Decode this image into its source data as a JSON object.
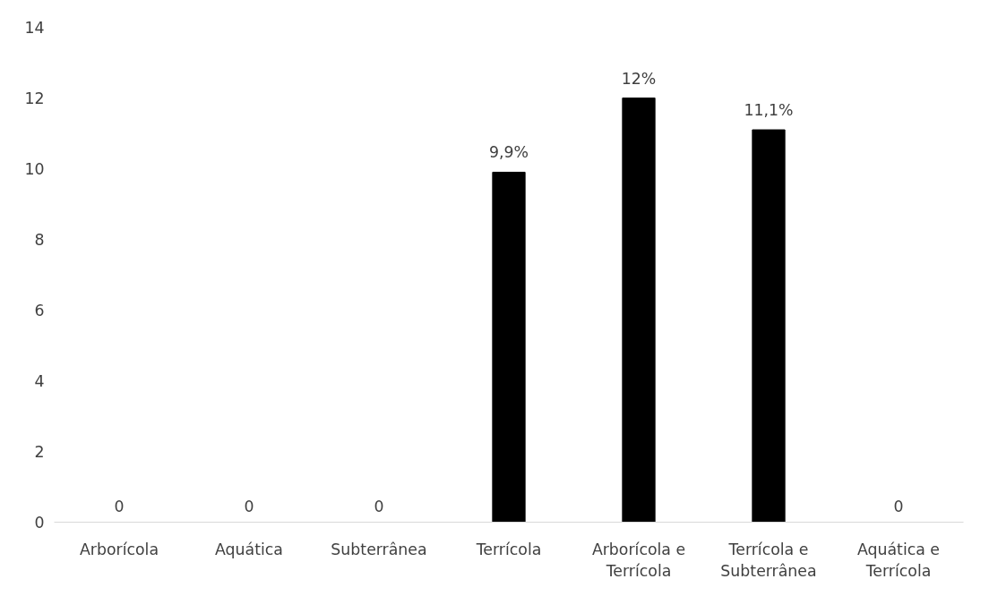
{
  "chart_data": {
    "type": "bar",
    "categories": [
      "Arborícola",
      "Aquática",
      "Subterrânea",
      "Terrícola",
      "Arborícola e\nTerrícola",
      "Terrícola e\nSubterrânea",
      "Aquática e\nTerrícola"
    ],
    "values": [
      0,
      0,
      0,
      9.9,
      12,
      11.1,
      0
    ],
    "value_labels": [
      "0",
      "0",
      "0",
      "9,9%",
      "12%",
      "11,1%",
      "0"
    ],
    "color": "#000000",
    "ylim": [
      0,
      14
    ],
    "yticks": [
      0,
      2,
      4,
      6,
      8,
      10,
      12,
      14
    ],
    "grid": false
  }
}
